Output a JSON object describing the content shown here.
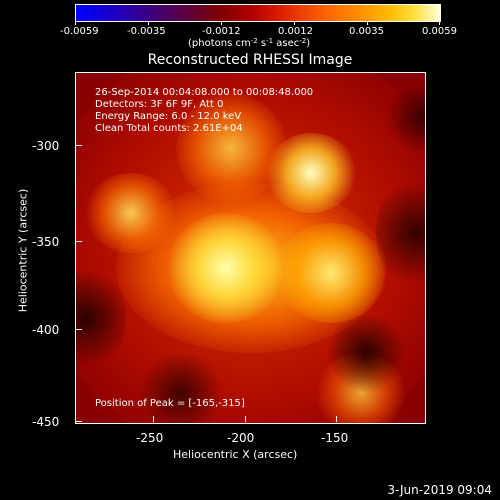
{
  "colorbar": {
    "tick_labels": [
      "-0.0059",
      "-0.0035",
      "-0.0012",
      "0.0012",
      "0.0035",
      "0.0059"
    ],
    "units_prefix": "(photons cm",
    "units_exp1": "-2",
    "units_mid": " s",
    "units_exp2": "-1",
    "units_mid2": " asec",
    "units_exp3": "-2",
    "units_suffix": ")"
  },
  "title": "Reconstructed RHESSI Image",
  "info": {
    "line1": "26-Sep-2014 00:04:08.000 to 00:08:48.000",
    "line2": "Detectors: 3F 6F 9F, Att 0",
    "line3": "Energy Range: 6.0 - 12.0 keV",
    "line4": "Clean    Total counts: 2.61E+04",
    "peak": "Position of Peak = [-165,-315]"
  },
  "axes": {
    "x_title": "Heliocentric X (arcsec)",
    "y_title": "Heliocentric Y (arcsec)",
    "x_ticks": [
      "-250",
      "-200",
      "-150"
    ],
    "y_ticks": [
      "-300",
      "-350",
      "-400",
      "-450"
    ]
  },
  "footer": {
    "date": "3-Jun-2019 09:04"
  }
}
